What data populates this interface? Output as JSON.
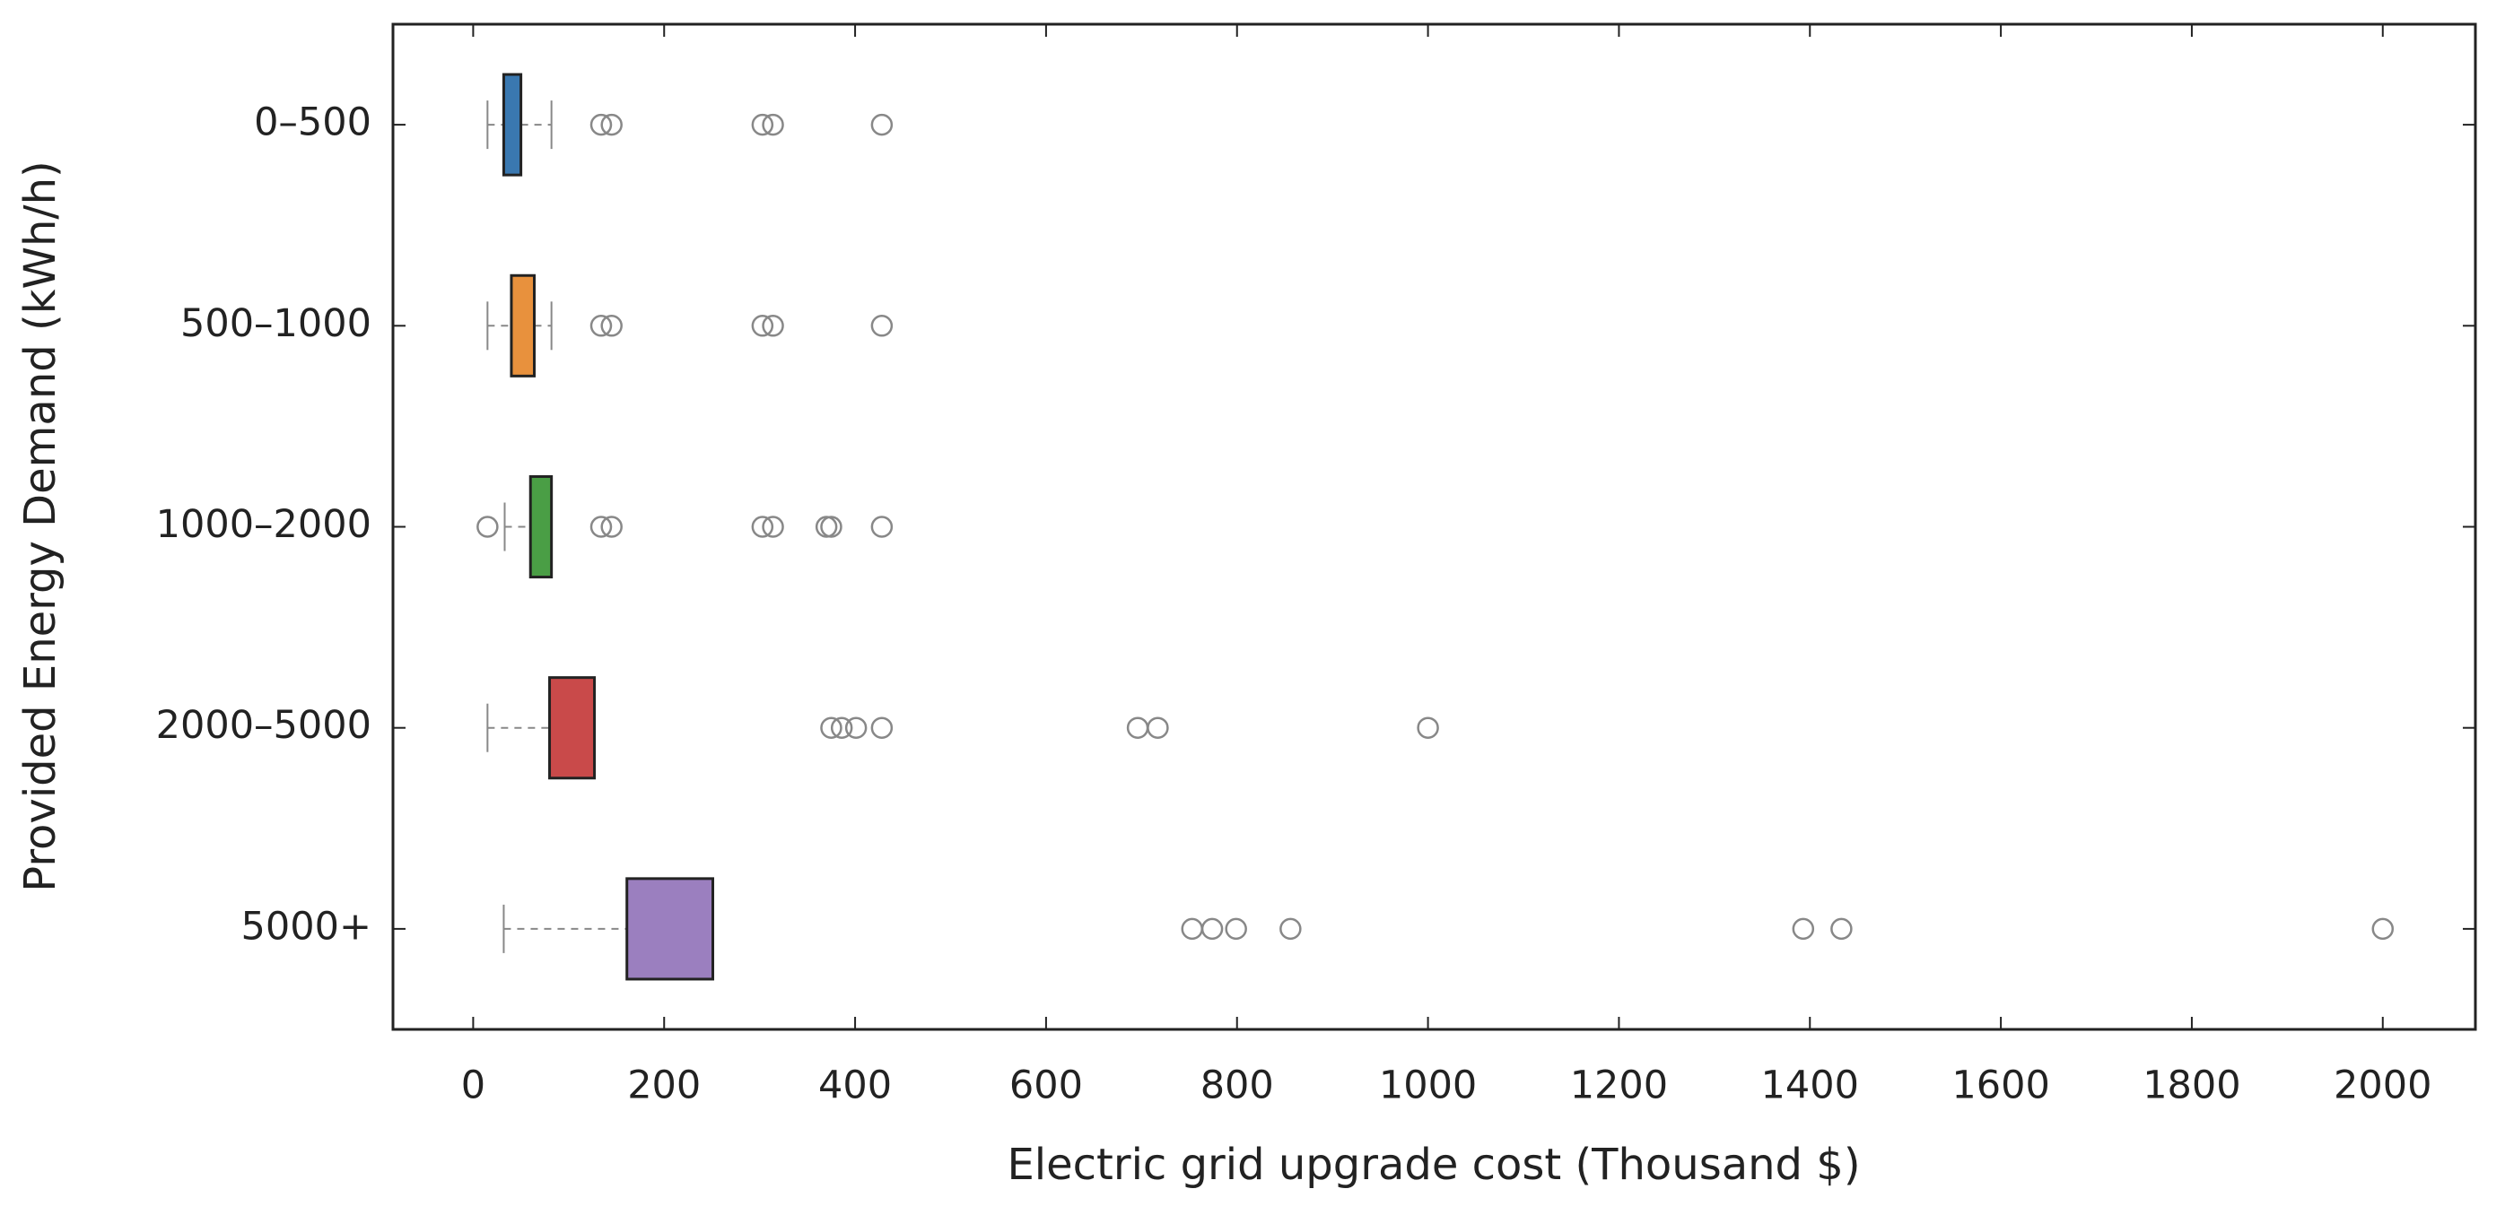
{
  "chart_data": {
    "type": "box",
    "orientation": "horizontal",
    "xlabel": "Electric grid upgrade cost (Thousand $)",
    "ylabel": "Provided Energy Demand (kWh/h)",
    "categories": [
      "0–500",
      "500–1000",
      "1000–2000",
      "2000–5000",
      "5000+"
    ],
    "series": [
      {
        "color": "#3a78b0",
        "whisker_low": 15,
        "q1": 32,
        "q3": 50,
        "whisker_high": 82,
        "outliers": [
          134,
          145,
          303,
          314,
          428
        ]
      },
      {
        "color": "#e8913d",
        "whisker_low": 15,
        "q1": 40,
        "q3": 64,
        "whisker_high": 82,
        "outliers": [
          134,
          145,
          303,
          314,
          428
        ]
      },
      {
        "color": "#4a9e45",
        "whisker_low": 33,
        "q1": 60,
        "q3": 82,
        "whisker_high": 82,
        "outliers": [
          15,
          134,
          145,
          303,
          314,
          370,
          375,
          428
        ]
      },
      {
        "color": "#c94a4a",
        "whisker_low": 15,
        "q1": 80,
        "q3": 127,
        "whisker_high": 127,
        "outliers": [
          375,
          386,
          401,
          428,
          696,
          717,
          1000
        ]
      },
      {
        "color": "#9b7fbf",
        "whisker_low": 32,
        "q1": 161,
        "q3": 251,
        "whisker_high": 251,
        "outliers": [
          753,
          774,
          799,
          856,
          1393,
          1433,
          2000
        ]
      }
    ],
    "xlim": [
      -84,
      2097
    ],
    "xticks": [
      0,
      200,
      400,
      600,
      800,
      1000,
      1200,
      1400,
      1600,
      1800,
      2000
    ]
  }
}
